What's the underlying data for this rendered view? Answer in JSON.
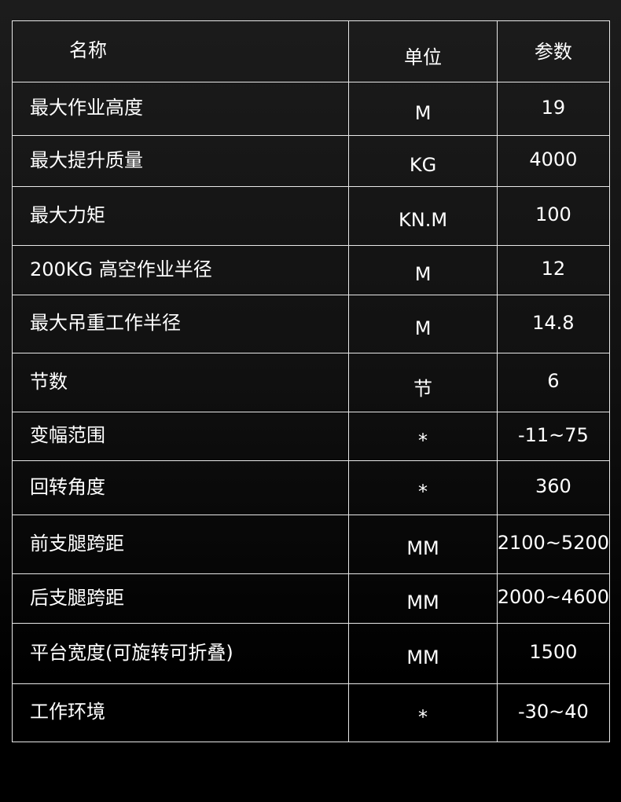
{
  "table": {
    "headers": [
      "名称",
      "单位",
      "参数"
    ],
    "rows": [
      [
        "最大作业高度",
        "M",
        "19"
      ],
      [
        "最大提升质量",
        "KG",
        "4000"
      ],
      [
        "最大力矩",
        "KN.M",
        "100"
      ],
      [
        "200KG 高空作业半径",
        "M",
        "12"
      ],
      [
        "最大吊重工作半径",
        "M",
        "14.8"
      ],
      [
        "节数",
        "节",
        "6"
      ],
      [
        "变幅范围",
        "*",
        "-11~75"
      ],
      [
        "回转角度",
        "*",
        "360"
      ],
      [
        "前支腿跨距",
        "MM",
        "2100~5200"
      ],
      [
        "后支腿跨距",
        "MM",
        "2000~4600"
      ],
      [
        "平台宽度(可旋转可折叠)",
        "MM",
        "1500"
      ],
      [
        "工作环境",
        "*",
        "-30~40"
      ]
    ]
  }
}
